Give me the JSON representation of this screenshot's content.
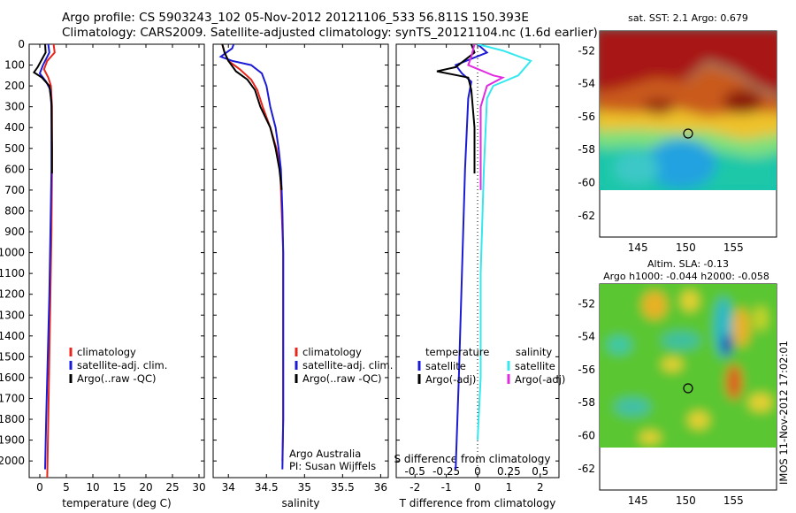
{
  "header": {
    "line1": "Argo profile: CS 5903243_102 05-Nov-2012 20121106_533 56.811S 150.393E",
    "line2": "Climatology: CARS2009. Satellite-adjusted climatology: synTS_20121104.nc (1.6d earlier)"
  },
  "colors": {
    "red": "#e8241b",
    "blue": "#1b1bd6",
    "black": "#000000",
    "cyan": "#33e8ee",
    "magenta": "#e02be0"
  },
  "chart_data": [
    {
      "type": "line",
      "name": "temperature-panel",
      "xlabel": "temperature (deg C)",
      "ylabel": "",
      "xlim": [
        -2,
        31
      ],
      "ylim": [
        2080,
        0
      ],
      "y_reversed": true,
      "xticks": [
        0,
        5,
        10,
        15,
        20,
        25,
        30
      ],
      "yticks": [
        0,
        100,
        200,
        300,
        400,
        500,
        600,
        700,
        800,
        900,
        1000,
        1100,
        1200,
        1300,
        1400,
        1500,
        1600,
        1700,
        1800,
        1900,
        2000
      ],
      "legend": [
        "climatology",
        "satellite-adj. clim.",
        "Argo(..raw -QC)"
      ],
      "series": [
        {
          "name": "climatology",
          "color": "#e8241b",
          "points": [
            [
              2.6,
              0
            ],
            [
              2.8,
              40
            ],
            [
              1.4,
              80
            ],
            [
              0.8,
              120
            ],
            [
              1.6,
              160
            ],
            [
              2.1,
              200
            ],
            [
              2.3,
              300
            ],
            [
              2.3,
              600
            ],
            [
              2.2,
              900
            ],
            [
              2.0,
              1200
            ],
            [
              1.8,
              1500
            ],
            [
              1.6,
              1800
            ],
            [
              1.4,
              2080
            ]
          ]
        },
        {
          "name": "satellite-adj. clim.",
          "color": "#1b1bd6",
          "points": [
            [
              1.6,
              0
            ],
            [
              1.8,
              40
            ],
            [
              0.6,
              100
            ],
            [
              0.0,
              140
            ],
            [
              1.2,
              180
            ],
            [
              2.0,
              220
            ],
            [
              2.2,
              300
            ],
            [
              2.2,
              600
            ],
            [
              2.0,
              900
            ],
            [
              1.8,
              1200
            ],
            [
              1.5,
              1500
            ],
            [
              1.2,
              1800
            ],
            [
              1.0,
              2040
            ]
          ]
        },
        {
          "name": "Argo(..raw -QC)",
          "color": "#000000",
          "points": [
            [
              1.0,
              0
            ],
            [
              1.1,
              40
            ],
            [
              -0.4,
              110
            ],
            [
              -1.1,
              135
            ],
            [
              0.4,
              160
            ],
            [
              1.8,
              200
            ],
            [
              2.2,
              280
            ],
            [
              2.3,
              500
            ],
            [
              2.3,
              620
            ]
          ]
        }
      ]
    },
    {
      "type": "line",
      "name": "salinity-panel",
      "xlabel": "salinity",
      "ylabel": "",
      "xlim": [
        33.8,
        36.1
      ],
      "ylim": [
        2080,
        0
      ],
      "y_reversed": true,
      "xticks": [
        34,
        34.5,
        35,
        35.5,
        36
      ],
      "legend": [
        "climatology",
        "satellite-adj. clim.",
        "Argo(..raw -QC)"
      ],
      "annotation": [
        "Argo Australia",
        "PI: Susan Wijffels"
      ],
      "series": [
        {
          "name": "climatology",
          "color": "#e8241b",
          "points": [
            [
              33.92,
              0
            ],
            [
              33.95,
              40
            ],
            [
              34.0,
              80
            ],
            [
              34.15,
              120
            ],
            [
              34.3,
              170
            ],
            [
              34.38,
              220
            ],
            [
              34.45,
              300
            ],
            [
              34.55,
              400
            ],
            [
              34.63,
              500
            ],
            [
              34.68,
              600
            ],
            [
              34.7,
              800
            ],
            [
              34.72,
              1000
            ],
            [
              34.72,
              1400
            ],
            [
              34.72,
              1800
            ],
            [
              34.71,
              2000
            ]
          ]
        },
        {
          "name": "satellite-adj. clim.",
          "color": "#1b1bd6",
          "points": [
            [
              34.07,
              0
            ],
            [
              34.05,
              20
            ],
            [
              33.9,
              60
            ],
            [
              34.05,
              80
            ],
            [
              34.3,
              100
            ],
            [
              34.44,
              140
            ],
            [
              34.5,
              200
            ],
            [
              34.55,
              300
            ],
            [
              34.62,
              400
            ],
            [
              34.66,
              500
            ],
            [
              34.69,
              600
            ],
            [
              34.71,
              800
            ],
            [
              34.72,
              1000
            ],
            [
              34.72,
              1400
            ],
            [
              34.72,
              1800
            ],
            [
              34.71,
              2040
            ]
          ]
        },
        {
          "name": "Argo(..raw -QC)",
          "color": "#000000",
          "points": [
            [
              33.92,
              0
            ],
            [
              33.95,
              40
            ],
            [
              34.0,
              80
            ],
            [
              34.1,
              130
            ],
            [
              34.25,
              170
            ],
            [
              34.35,
              220
            ],
            [
              34.42,
              300
            ],
            [
              34.55,
              400
            ],
            [
              34.62,
              500
            ],
            [
              34.67,
              600
            ],
            [
              34.7,
              700
            ]
          ]
        }
      ]
    },
    {
      "type": "line",
      "name": "difference-panel",
      "xlabel": "T difference from climatology",
      "xlabel_top": "S difference from climatology",
      "ylabel": "",
      "xlim": [
        -2.6,
        2.6
      ],
      "ylim": [
        2080,
        0
      ],
      "y_reversed": true,
      "xticks": [
        -2,
        -1,
        0,
        1,
        2
      ],
      "xticks_s": [
        "-0.5",
        "-0.25",
        "0",
        "0.25",
        "0.5"
      ],
      "legend_left_title": "temperature",
      "legend_right_title": "salinity",
      "legend": [
        "satellite",
        "Argo(-adj)",
        "satellite",
        "Argo(-adj)"
      ],
      "series": [
        {
          "name": "temperature satellite",
          "color": "#1b1bd6",
          "points": [
            [
              0.0,
              0
            ],
            [
              0.3,
              40
            ],
            [
              -0.7,
              100
            ],
            [
              -0.5,
              140
            ],
            [
              -0.2,
              180
            ],
            [
              -0.3,
              260
            ],
            [
              -0.4,
              600
            ],
            [
              -0.5,
              1100
            ],
            [
              -0.6,
              1600
            ],
            [
              -0.7,
              2040
            ]
          ]
        },
        {
          "name": "salinity satellite",
          "color": "#33e8ee",
          "points": [
            [
              0.0,
              0
            ],
            [
              0.8,
              30
            ],
            [
              1.7,
              80
            ],
            [
              1.3,
              150
            ],
            [
              0.5,
              200
            ],
            [
              0.3,
              260
            ],
            [
              0.2,
              600
            ],
            [
              0.1,
              1100
            ],
            [
              0.1,
              1600
            ],
            [
              0.0,
              1900
            ]
          ]
        },
        {
          "name": "temperature Argo(-adj)",
          "color": "#000000",
          "points": [
            [
              -0.2,
              0
            ],
            [
              -0.1,
              40
            ],
            [
              -0.7,
              110
            ],
            [
              -1.3,
              130
            ],
            [
              -0.3,
              160
            ],
            [
              -0.2,
              220
            ],
            [
              -0.1,
              400
            ],
            [
              -0.1,
              620
            ]
          ]
        },
        {
          "name": "salinity Argo(-adj)",
          "color": "#e02be0",
          "points": [
            [
              -0.1,
              0
            ],
            [
              -0.2,
              60
            ],
            [
              -0.3,
              100
            ],
            [
              0.5,
              150
            ],
            [
              0.8,
              160
            ],
            [
              0.3,
              200
            ],
            [
              0.1,
              300
            ],
            [
              0.1,
              700
            ]
          ]
        }
      ]
    },
    {
      "type": "heatmap",
      "name": "sst-map",
      "title": "sat. SST: 2.1  Argo: 0.679",
      "xlim": [
        141,
        159.5
      ],
      "ylim": [
        -63.3,
        -50.8
      ],
      "xticks": [
        145,
        150,
        155
      ],
      "yticks": [
        -52,
        -54,
        -56,
        -58,
        -60,
        -62
      ],
      "argo_position": [
        150.39,
        -56.81
      ]
    },
    {
      "type": "heatmap",
      "name": "sla-map",
      "title": "Altim. SLA: -0.13",
      "subtitle": "Argo h1000: -0.044 h2000: -0.058",
      "xlim": [
        141,
        159.5
      ],
      "ylim": [
        -63.3,
        -50.8
      ],
      "xticks": [
        145,
        150,
        155
      ],
      "yticks": [
        -52,
        -54,
        -56,
        -58,
        -60,
        -62
      ],
      "argo_position": [
        150.39,
        -56.81
      ]
    }
  ],
  "timestamp": "IMOS 11-Nov-2012 17:02:01"
}
